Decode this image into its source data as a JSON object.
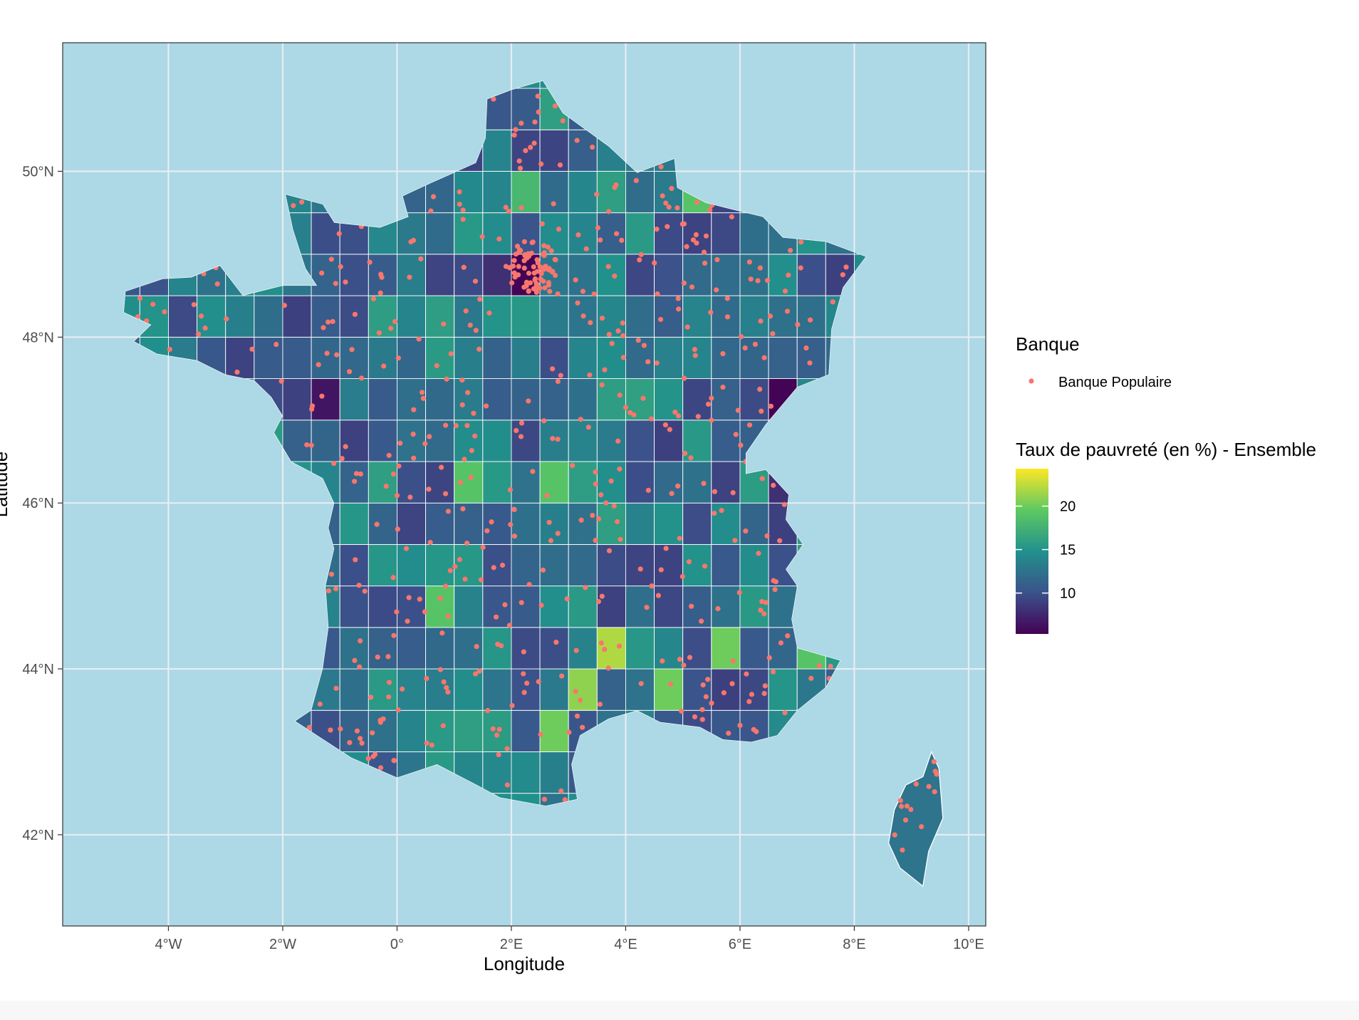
{
  "map": {
    "xlabel": "Longitude",
    "ylabel": "Latitude",
    "x_ticks": [
      "4°W",
      "2°W",
      "0°",
      "2°E",
      "4°E",
      "6°E",
      "8°E",
      "10°E"
    ],
    "y_ticks": [
      "42°N",
      "44°N",
      "46°N",
      "48°N",
      "50°N"
    ],
    "x_tick_values": [
      -4,
      -2,
      0,
      2,
      4,
      6,
      8,
      10
    ],
    "y_tick_values": [
      42,
      44,
      46,
      48,
      50
    ],
    "xlim": [
      -5.85,
      10.3
    ],
    "ylim": [
      40.9,
      51.55
    ],
    "background_color": "#add8e6",
    "border_color": "#ffffff",
    "point_color": "#f8766d",
    "grid": true
  },
  "legend": {
    "banque_title": "Banque",
    "banque_item": "Banque Populaire",
    "fill_title": "Taux de pauvreté (en %) - Ensemble",
    "fill_ticks": [
      "10",
      "15",
      "20"
    ],
    "fill_tick_values": [
      10,
      15,
      20
    ],
    "fill_range": [
      5.3,
      24.3
    ],
    "colors": [
      "#440154",
      "#3b528b",
      "#21918c",
      "#5ec962",
      "#fde725"
    ]
  }
}
